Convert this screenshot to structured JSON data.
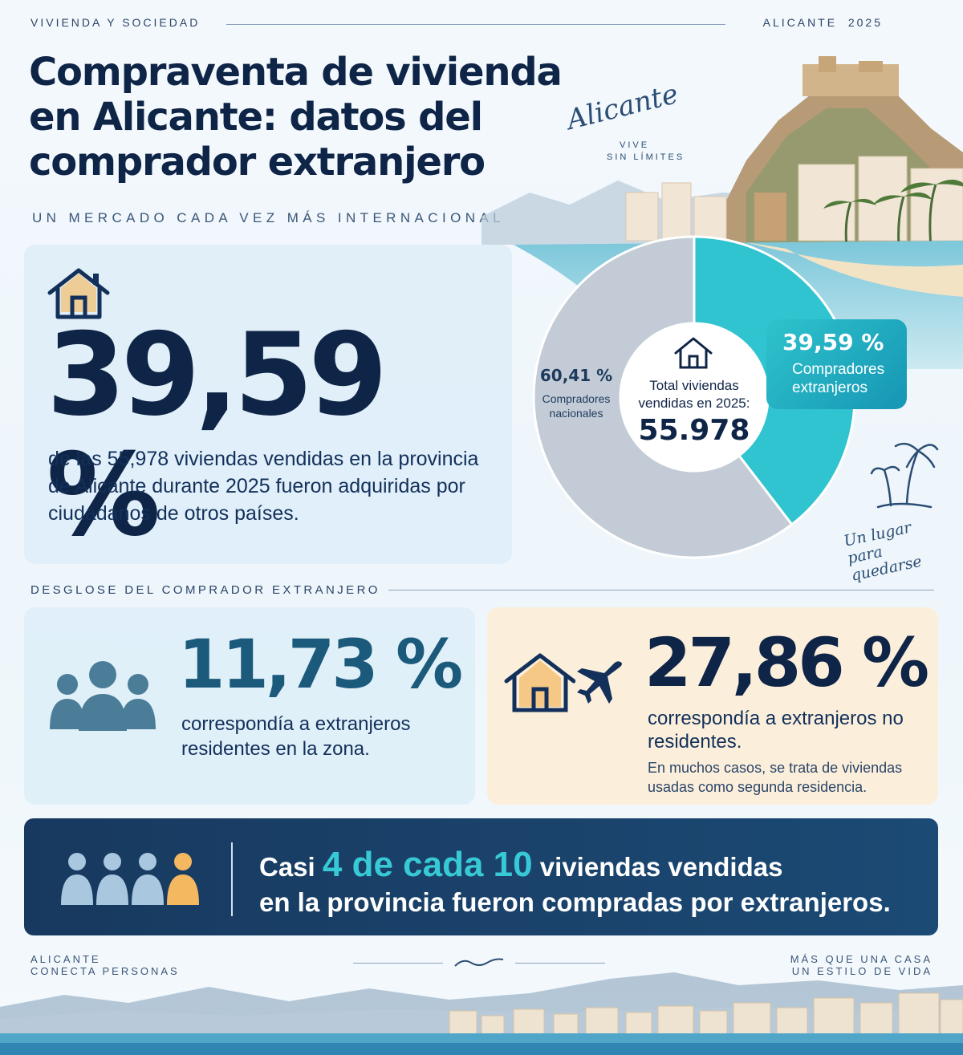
{
  "header": {
    "left_kicker": "VIVIENDA Y SOCIEDAD",
    "right_kicker": "ALICANTE  2025",
    "title": "Compraventa de vivienda en Alicante: datos del comprador extranjero",
    "subtitle": "UN MERCADO CADA VEZ MÁS INTERNACIONAL"
  },
  "brand": {
    "script": "Alicante",
    "tagline_line1": "VIVE",
    "tagline_line2": "SIN LÍMITES"
  },
  "main_stat": {
    "value": "39,59 %",
    "description": "de las 55,978 viviendas vendidas en la provincia de Alicante durante 2025 fueron adquiridas por ciudadanos de otros países.",
    "icon": "house-icon"
  },
  "chart_data": {
    "type": "pie",
    "categories": [
      "Compradores nacionales",
      "Compradores extranjeros"
    ],
    "values": [
      60.41,
      39.59
    ],
    "value_labels": [
      "60,41 %",
      "39,59 %"
    ],
    "center_label": "Total viviendas vendidas en 2025:",
    "center_value": "55.978",
    "colors": [
      "#c3ccd6",
      "#2fc4cf"
    ]
  },
  "donut": {
    "national_pct": "60,41 %",
    "national_label": "Compradores nacionales",
    "foreign_pct": "39,59 %",
    "foreign_label": "Compradores extranjeros",
    "total_label": "Total viviendas vendidas en 2025:",
    "total_value": "55.978"
  },
  "slogan": "Un lugar para quedarse",
  "breakdown": {
    "section_label": "DESGLOSE DEL COMPRADOR EXTRANJERO",
    "residents": {
      "pct": "11,73 %",
      "description": "correspondía a extranjeros residentes en la zona.",
      "icon": "people-group-icon"
    },
    "non_residents": {
      "pct": "27,86 %",
      "description": "correspondía a extranjeros no residentes.",
      "note": "En muchos casos, se trata de viviendas usadas como segunda residencia.",
      "icons": [
        "house-icon",
        "airplane-icon"
      ]
    }
  },
  "banner": {
    "prefix": "Casi",
    "highlight": "4 de cada 10",
    "suffix_line1": "viviendas vendidas",
    "line2": "en la provincia fueron compradas por extranjeros."
  },
  "footer": {
    "left_line1": "ALICANTE",
    "left_line2": "CONECTA PERSONAS",
    "right_line1": "MÁS QUE UNA CASA",
    "right_line2": "UN ESTILO DE VIDA"
  },
  "colors": {
    "navy": "#0f2547",
    "teal": "#2fc4cf",
    "gray": "#c3ccd6",
    "accent_orange": "#f4b860",
    "sand": "#fbefdc"
  }
}
